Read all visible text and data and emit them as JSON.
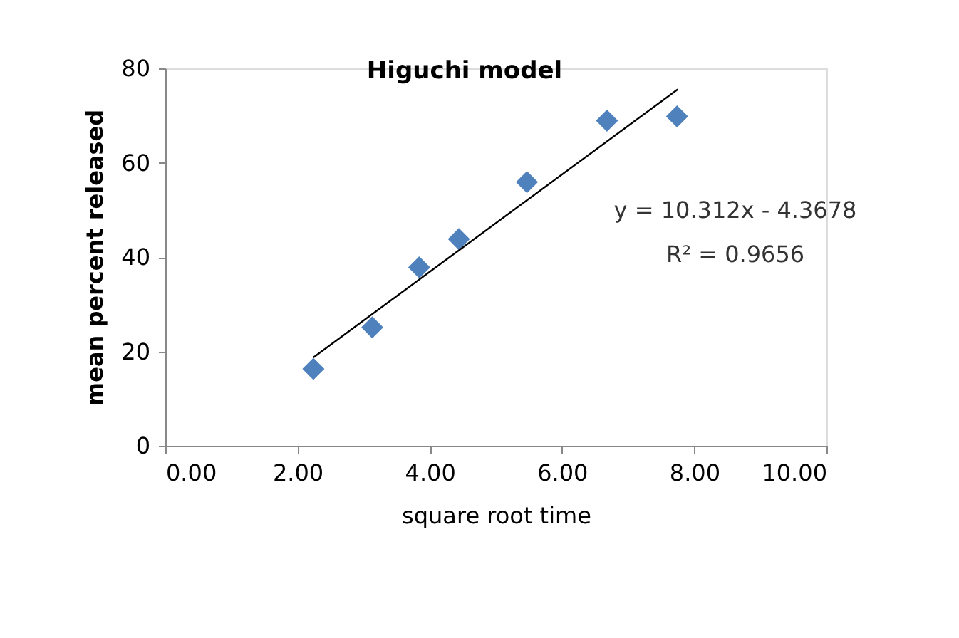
{
  "chart_data": {
    "type": "scatter",
    "title": "Higuchi model",
    "xlabel": "square root time",
    "ylabel": "mean percent released",
    "series": [
      {
        "color": "#4f81bd",
        "marker": "diamond",
        "x": [
          2.24,
          3.13,
          3.84,
          4.44,
          5.47,
          6.68,
          7.74
        ],
        "values": [
          16.3,
          25.1,
          37.8,
          43.8,
          55.9,
          68.9,
          69.8
        ]
      },
      {
        "type": "line",
        "color": "#000000",
        "marker": "none",
        "x": [
          2.24,
          7.75
        ],
        "values": [
          18.73,
          75.55
        ]
      }
    ],
    "annotations": [
      "y = 10.312x - 4.3678",
      "R² = 0.9656"
    ],
    "xlim": [
      0,
      10
    ],
    "xticks": [
      {
        "value": 0,
        "label": "0.00"
      },
      {
        "value": 2,
        "label": "2.00"
      },
      {
        "value": 4,
        "label": "4.00"
      },
      {
        "value": 6,
        "label": "6.00"
      },
      {
        "value": 8,
        "label": "8.00"
      },
      {
        "value": 10,
        "label": "10.00"
      }
    ],
    "ylim": [
      0,
      80
    ],
    "yticks": [
      0,
      20,
      40,
      60,
      80
    ],
    "grid": false
  }
}
